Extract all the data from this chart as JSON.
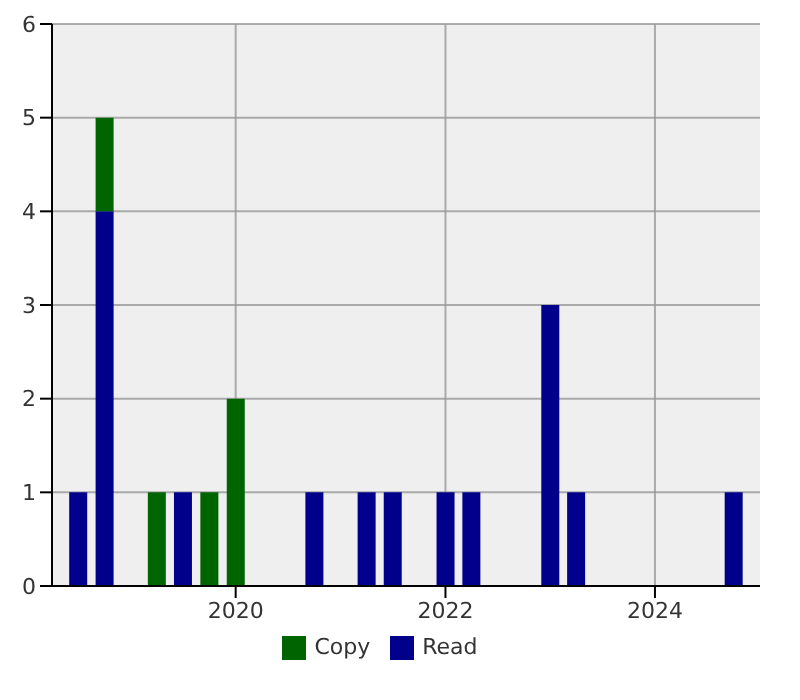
{
  "chart_data": {
    "type": "bar",
    "stacked": true,
    "x": [
      "2018-07",
      "2018-10",
      "2019-04",
      "2019-07",
      "2019-10",
      "2020-01",
      "2020-10",
      "2021-04",
      "2021-07",
      "2022-01",
      "2022-04",
      "2023-01",
      "2023-04",
      "2024-10"
    ],
    "series": [
      {
        "name": "Read",
        "color": "#00008b",
        "values": [
          1,
          4,
          null,
          1,
          null,
          null,
          1,
          1,
          1,
          1,
          1,
          3,
          1,
          1
        ]
      },
      {
        "name": "Copy",
        "color": "#006400",
        "values": [
          null,
          1,
          1,
          null,
          1,
          2,
          null,
          null,
          null,
          null,
          null,
          null,
          null,
          null
        ]
      }
    ],
    "xlim": [
      "2018-04",
      "2025-01"
    ],
    "xticks": [
      "2020",
      "2022",
      "2024"
    ],
    "ylim": [
      0,
      6
    ],
    "yticks": [
      0,
      1,
      2,
      3,
      4,
      5,
      6
    ],
    "grid": true,
    "legend": "bottom"
  }
}
